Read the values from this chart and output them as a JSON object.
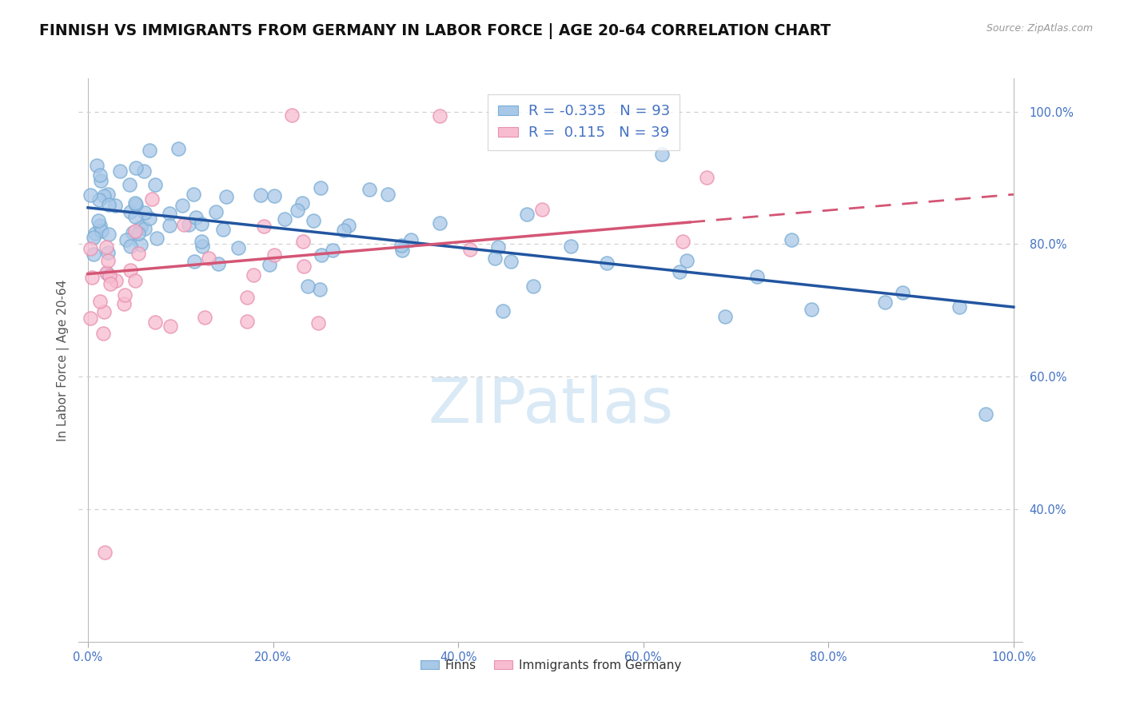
{
  "title": "FINNISH VS IMMIGRANTS FROM GERMANY IN LABOR FORCE | AGE 20-64 CORRELATION CHART",
  "source": "Source: ZipAtlas.com",
  "ylabel": "In Labor Force | Age 20-64",
  "xlim": [
    -0.01,
    1.01
  ],
  "ylim": [
    0.2,
    1.05
  ],
  "xticks": [
    0.0,
    0.2,
    0.4,
    0.6,
    0.8,
    1.0
  ],
  "yticks": [
    0.4,
    0.6,
    0.8,
    1.0
  ],
  "legend_blue_label": "Finns",
  "legend_pink_label": "Immigrants from Germany",
  "R_blue": -0.335,
  "N_blue": 93,
  "R_pink": 0.115,
  "N_pink": 39,
  "blue_color": "#a8c8e8",
  "blue_edge_color": "#7aadd4",
  "blue_line_color": "#2255a0",
  "pink_color": "#f8bcd0",
  "pink_edge_color": "#e890b0",
  "pink_line_color": "#d45575",
  "axis_color": "#4472c4",
  "grid_color": "#d0d0d0",
  "background_color": "#ffffff",
  "watermark": "ZIPatlas",
  "title_fontsize": 13.5,
  "label_fontsize": 11,
  "tick_fontsize": 10.5,
  "blue_line_start_y": 0.855,
  "blue_line_end_y": 0.705,
  "pink_line_start_y": 0.755,
  "pink_line_end_y": 0.875
}
